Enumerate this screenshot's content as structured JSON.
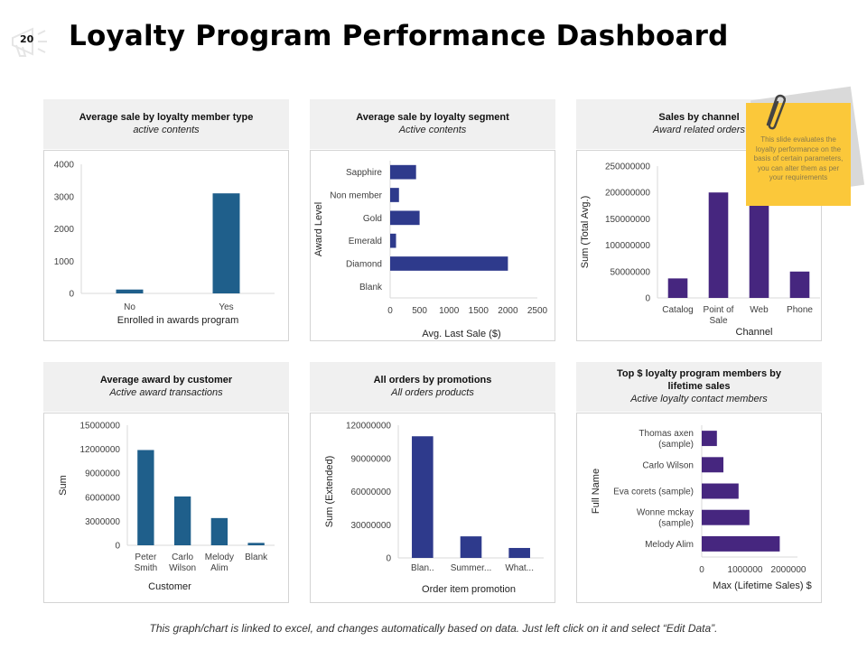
{
  "slide_number": "20",
  "page_title": "Loyalty Program Performance Dashboard",
  "footer_note": "This graph/chart is linked to excel, and changes automatically  based on data. Just left click on it and select “Edit Data”.",
  "sticky_note": {
    "text": "This slide evaluates the loyalty performance on the basis of certain parameters, you can alter them as per your requirements",
    "color": "#fbc83a"
  },
  "icons": [
    "megaphone-icon",
    "paperclip-icon"
  ],
  "colors": {
    "teal_blue": "#1f5f8b",
    "navy": "#2e3a8c",
    "purple": "#46267f",
    "panel_header_bg": "#f0f0f0"
  },
  "chart_data": [
    {
      "id": "member_type",
      "type": "bar",
      "title": "Average sale by loyalty member type",
      "subtitle": "active contents",
      "categories": [
        "No",
        "Yes"
      ],
      "values": [
        120,
        3100
      ],
      "xlabel": "Enrolled in awards program",
      "ylabel": "",
      "ylim": [
        0,
        4000
      ],
      "yticks": [
        "0",
        "1000",
        "2000",
        "3000",
        "4000"
      ],
      "color": "#1f5f8b",
      "orientation": "vertical",
      "grid": false
    },
    {
      "id": "segment",
      "type": "bar",
      "title": "Average sale by loyalty segment",
      "subtitle": "Active contents",
      "categories": [
        "Sapphire",
        "Non member",
        "Gold",
        "Emerald",
        "Diamond",
        "Blank"
      ],
      "values": [
        440,
        150,
        500,
        100,
        2000,
        0
      ],
      "xlabel": "Avg. Last Sale ($)",
      "ylabel": "Award Level",
      "xlim": [
        0,
        2500
      ],
      "xticks": [
        "0",
        "500",
        "1000",
        "1500",
        "2000",
        "2500"
      ],
      "color": "#2e3a8c",
      "orientation": "horizontal",
      "grid": false
    },
    {
      "id": "channel",
      "type": "bar",
      "title": "Sales by channel",
      "subtitle": "Award related orders",
      "categories": [
        "Catalog",
        "Point of Sale",
        "Web",
        "Phone"
      ],
      "values": [
        37000000,
        200000000,
        195000000,
        50000000
      ],
      "xlabel": "Channel",
      "ylabel": "Sum (Total Avg.)",
      "ylim": [
        0,
        250000000
      ],
      "yticks": [
        "0",
        "50000000",
        "100000000",
        "150000000",
        "200000000",
        "250000000"
      ],
      "color": "#46267f",
      "orientation": "vertical",
      "grid": false
    },
    {
      "id": "customer",
      "type": "bar",
      "title": "Average award by customer",
      "subtitle": "Active award transactions",
      "categories": [
        "Peter Smith",
        "Carlo Wilson",
        "Melody Alim",
        "Blank"
      ],
      "values": [
        11900000,
        6100000,
        3400000,
        300000
      ],
      "xlabel": "Customer",
      "ylabel": "Sum",
      "ylim": [
        0,
        15000000
      ],
      "yticks": [
        "0",
        "3000000",
        "6000000",
        "9000000",
        "12000000",
        "15000000"
      ],
      "color": "#1f5f8b",
      "orientation": "vertical",
      "grid": false
    },
    {
      "id": "promotions",
      "type": "bar",
      "title": "All orders by promotions",
      "subtitle": "All orders products",
      "categories": [
        "Blan..",
        "Summer...",
        "What..."
      ],
      "values": [
        110000000,
        19500000,
        9000000
      ],
      "xlabel": "Order item promotion",
      "ylabel": "Sum (Extended)",
      "ylim": [
        0,
        120000000
      ],
      "yticks": [
        "0",
        "30000000",
        "60000000",
        "90000000",
        "120000000"
      ],
      "color": "#2e3a8c",
      "orientation": "vertical",
      "grid": false
    },
    {
      "id": "lifetime",
      "type": "bar",
      "title": "Top $ loyalty  program members by lifetime sales",
      "subtitle": "Active loyalty contact members",
      "categories": [
        "Thomas axen (sample)",
        "Carlo Wilson",
        "Eva corets (sample)",
        "Wonne mckay (sample)",
        "Melody Alim"
      ],
      "values": [
        350000,
        500000,
        850000,
        1100000,
        1800000
      ],
      "xlabel": "Max  (Lifetime Sales) $",
      "ylabel": "Full Name",
      "xlim": [
        0,
        2000000
      ],
      "xticks": [
        "0",
        "1000000",
        "2000000"
      ],
      "color": "#46267f",
      "orientation": "horizontal",
      "grid": false
    }
  ]
}
